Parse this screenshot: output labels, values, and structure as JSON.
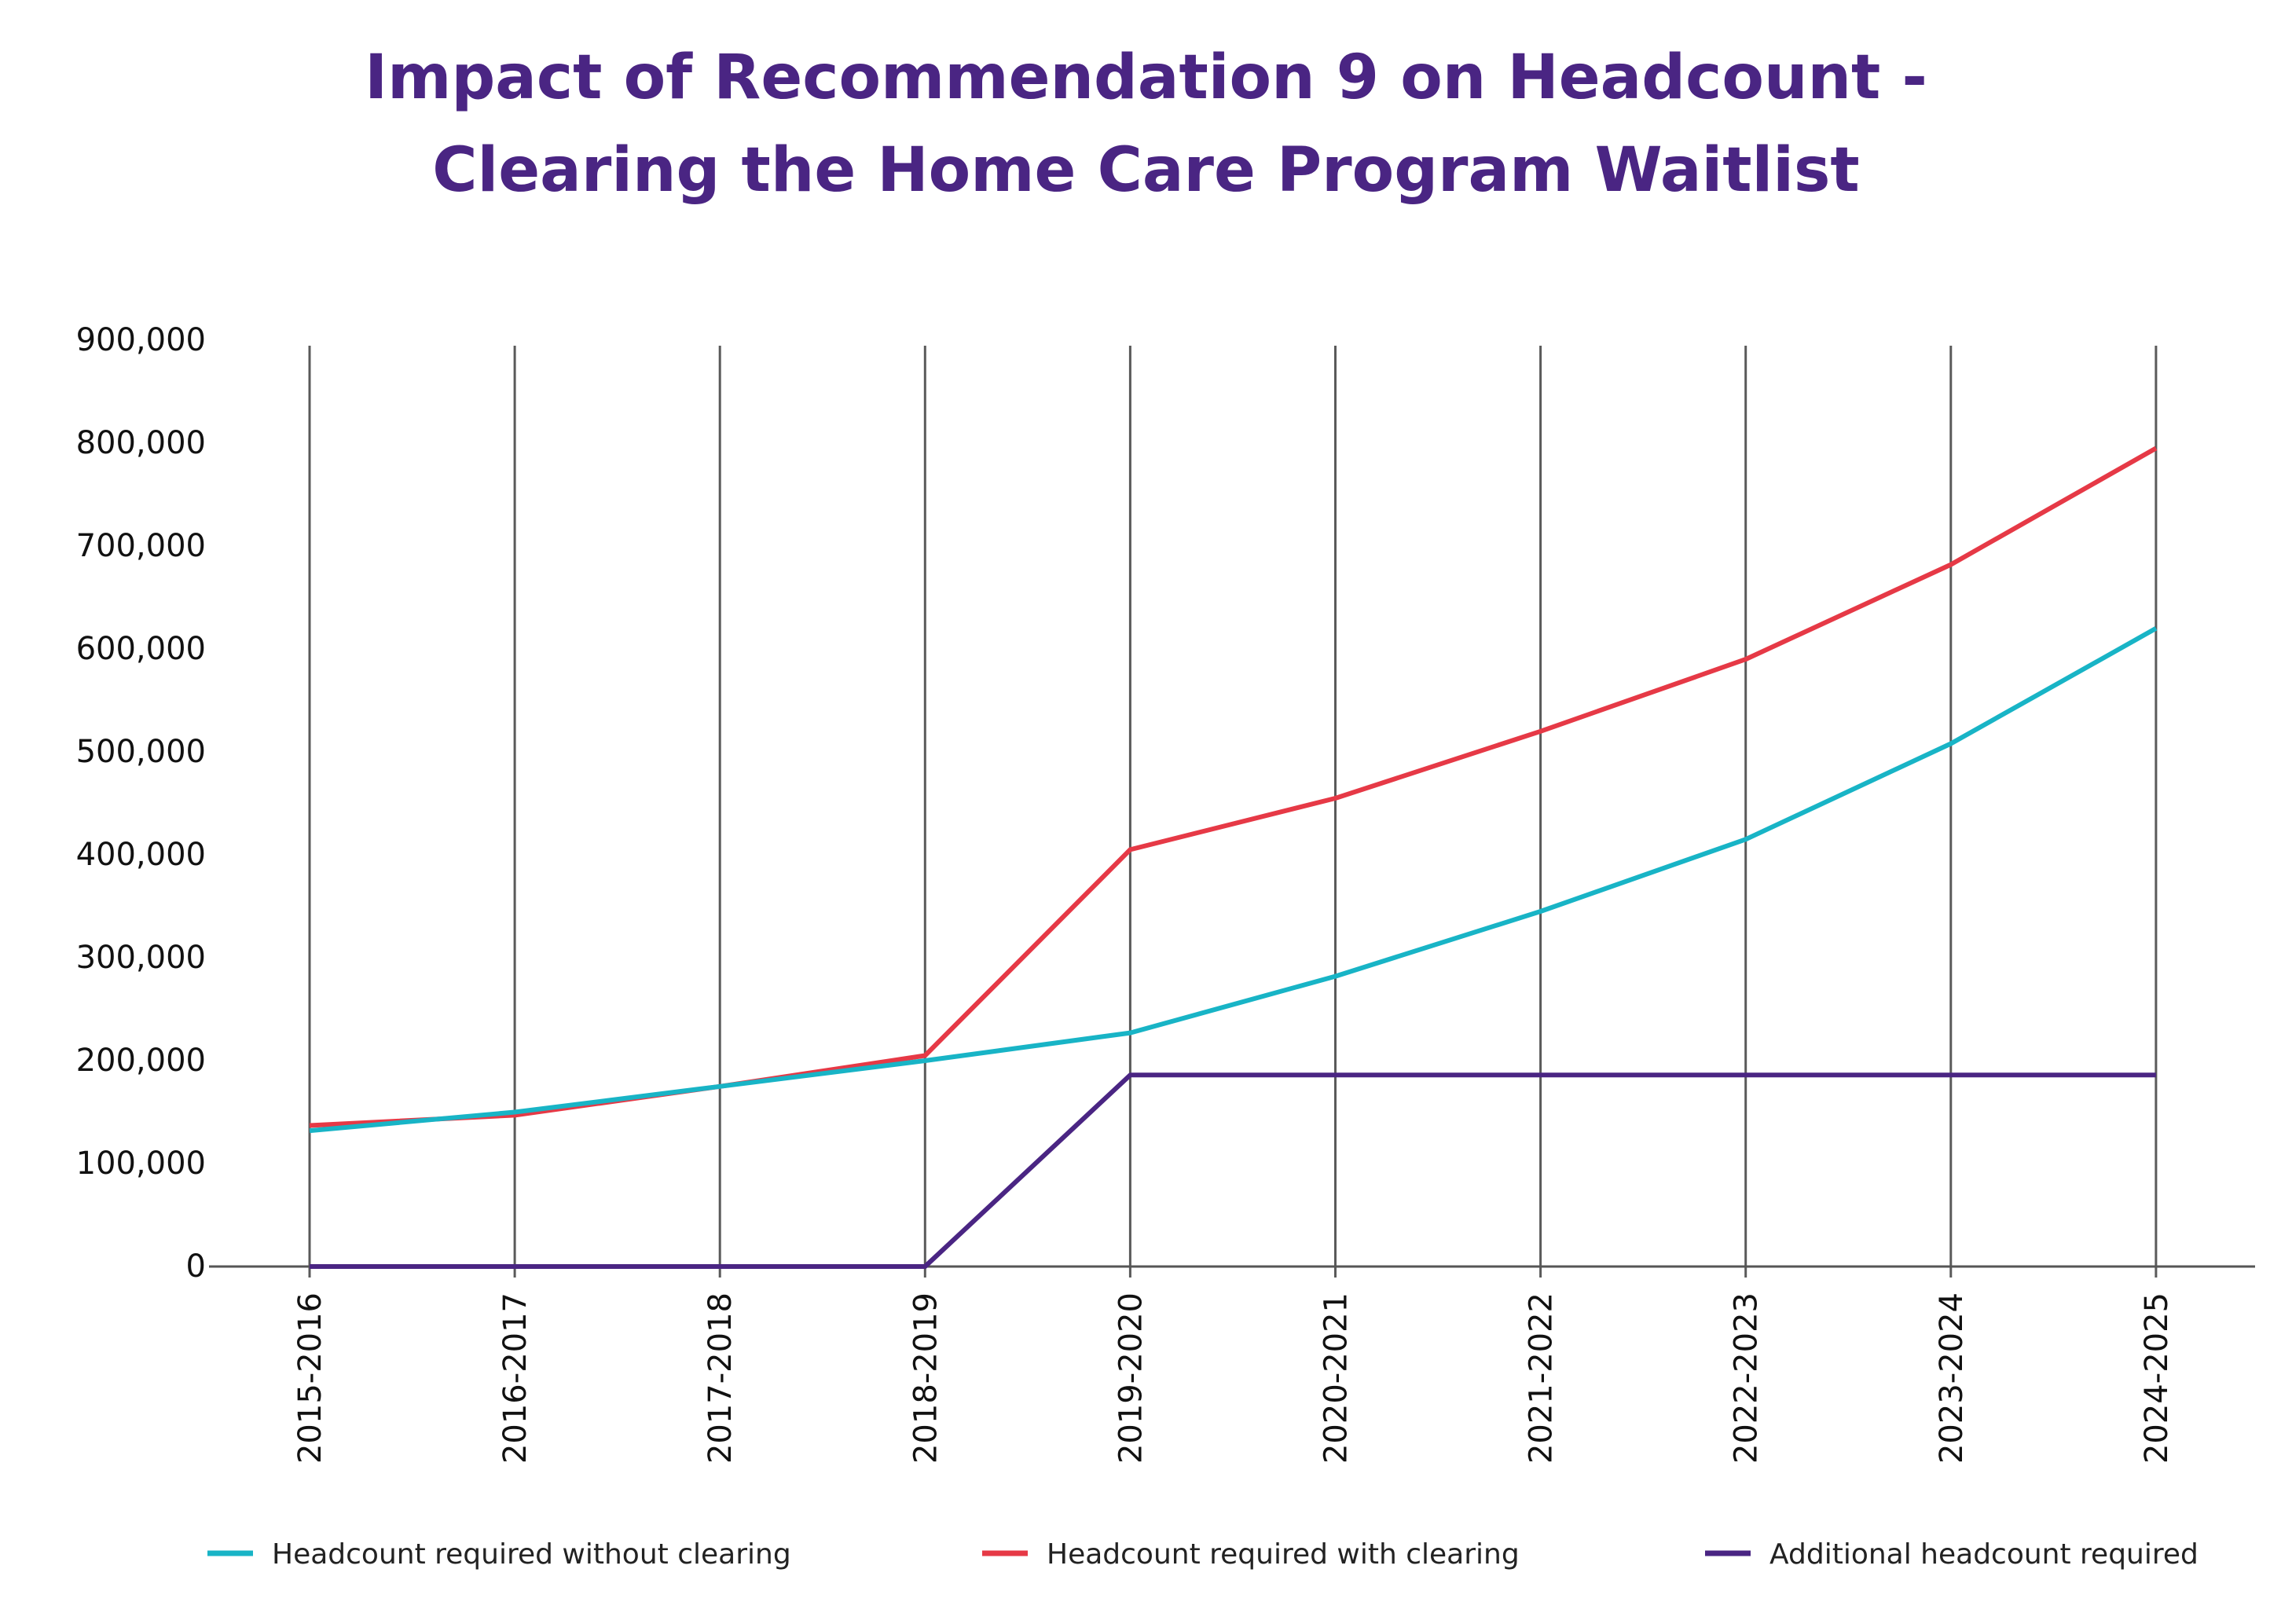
{
  "chart_data": {
    "type": "line",
    "title": [
      "Impact of Recommendation 9 on Headcount -",
      "Clearing the Home Care Program Waitlist"
    ],
    "xlabel": "",
    "ylabel": "",
    "categories": [
      "2015-2016",
      "2016-2017",
      "2017-2018",
      "2018-2019",
      "2019-2020",
      "2020-2021",
      "2021-2022",
      "2022-2023",
      "2023-2024",
      "2024-2025"
    ],
    "ylim": [
      0,
      900000
    ],
    "yticks": [
      0,
      100000,
      200000,
      300000,
      400000,
      500000,
      600000,
      700000,
      800000,
      900000
    ],
    "ytick_labels": [
      "0",
      "100,000",
      "200,000",
      "300,000",
      "400,000",
      "500,000",
      "600,000",
      "700,000",
      "800,000",
      "900,000"
    ],
    "grid": "vertical",
    "legend_position": "bottom",
    "series": [
      {
        "name": "Headcount required without clearing",
        "color": "#18b4c6",
        "values": [
          132000,
          150000,
          175000,
          200000,
          227000,
          282000,
          345000,
          415000,
          508000,
          620000
        ]
      },
      {
        "name": "Headcount required with clearing",
        "color": "#e63946",
        "values": [
          137000,
          147000,
          175000,
          205000,
          405000,
          455000,
          520000,
          590000,
          682000,
          795000
        ]
      },
      {
        "name": "Additional headcount required",
        "color": "#4a2583",
        "values": [
          0,
          0,
          0,
          0,
          186000,
          186000,
          186000,
          186000,
          186000,
          186000
        ]
      }
    ]
  }
}
